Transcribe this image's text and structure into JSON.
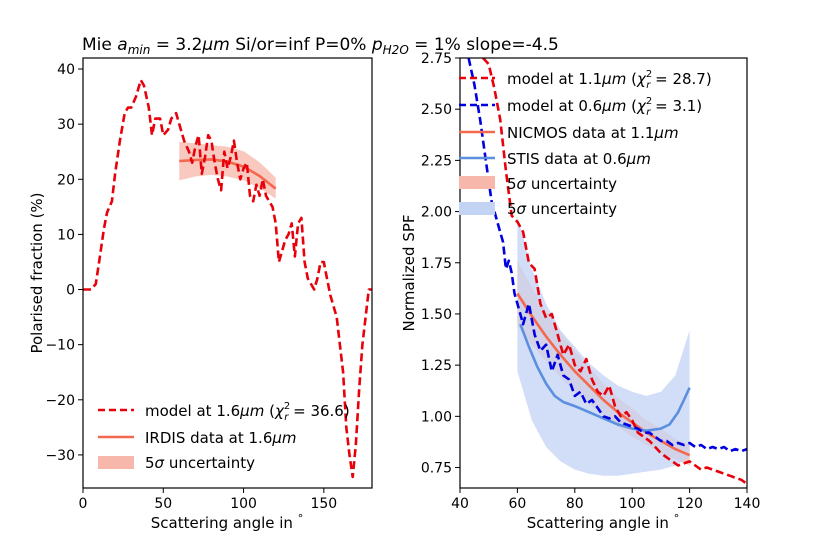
{
  "title": "Mie a_min = 3.2μm Si/or=inf P=0% p_H2O = 1% slope=-4.5",
  "title_parts": {
    "lead": "Mie ",
    "a_base": "a",
    "a_sub": "min",
    "mid": " = 3.2",
    "mu1": "μm",
    "mid2": " Si/or=inf P=0% ",
    "p_base": "p",
    "p_sub": "H2O",
    "tail": " = 1% slope=-4.5"
  },
  "colors": {
    "red": "#e8000b",
    "blue": "#0000e0",
    "salmon": "#f4684d",
    "steelblue": "#5b8fe0",
    "salmon_fill": "#f7b7aa",
    "blue_fill": "#c3d3f4"
  },
  "chart_data": [
    {
      "type": "line",
      "panel": "left",
      "xlabel": "Scattering angle in °",
      "ylabel": "Polarised fraction (%)",
      "xlim": [
        0,
        180
      ],
      "ylim": [
        -36,
        42
      ],
      "xticks": [
        0,
        50,
        100,
        150
      ],
      "yticks": [
        40,
        30,
        20,
        10,
        0,
        -10,
        -20,
        -30
      ],
      "xtick_labels": [
        "0",
        "50",
        "100",
        "150"
      ],
      "ytick_labels": [
        "40",
        "30",
        "20",
        "10",
        "0",
        "−10",
        "−20",
        "−30"
      ],
      "series": [
        {
          "name": "model at 1.6μm (χ²r = 36.6)",
          "style": "dashed",
          "color": "#e8000b",
          "x": [
            0,
            5,
            8,
            10,
            13,
            15,
            18,
            20,
            23,
            26,
            28,
            30,
            33,
            36,
            38,
            41,
            43,
            45,
            48,
            50,
            53,
            55,
            58,
            60,
            63,
            66,
            68,
            70,
            72,
            74,
            76,
            78,
            80,
            82,
            84,
            86,
            88,
            90,
            92,
            94,
            96,
            98,
            100,
            102,
            104,
            106,
            108,
            110,
            112,
            114,
            116,
            118,
            120,
            122,
            124,
            126,
            128,
            130,
            132,
            134,
            136,
            138,
            140,
            142,
            144,
            146,
            148,
            150,
            152,
            154,
            156,
            158,
            160,
            162,
            164,
            166,
            168,
            170,
            172,
            174,
            176,
            178,
            180
          ],
          "y": [
            0,
            0,
            1,
            5,
            11,
            14,
            16,
            21,
            27,
            32,
            33,
            33,
            35,
            38,
            37,
            33,
            28,
            31,
            31,
            28,
            29,
            31,
            32,
            30,
            27,
            25,
            23,
            26,
            28,
            21,
            24,
            28,
            27,
            23,
            20,
            18,
            25,
            22,
            24,
            27,
            23,
            20,
            22,
            23,
            17,
            16,
            19,
            17,
            20,
            17,
            16,
            15,
            12,
            5,
            7,
            9,
            10,
            12,
            6,
            12,
            13,
            5,
            2,
            1,
            0,
            2,
            5,
            5,
            2,
            -1,
            -3,
            -5,
            -10,
            -15,
            -25,
            -30,
            -34,
            -28,
            -18,
            -10,
            -5,
            0,
            0
          ]
        },
        {
          "name": "IRDIS data at 1.6μm",
          "style": "solid",
          "color": "#f4684d",
          "x": [
            60,
            70,
            80,
            90,
            100,
            110,
            120
          ],
          "y": [
            23.3,
            23.5,
            23.6,
            23.2,
            22.3,
            20.6,
            18.3
          ]
        }
      ],
      "bands": [
        {
          "name": "5σ uncertainty",
          "color": "#f7b7aa",
          "x": [
            60,
            70,
            80,
            90,
            100,
            110,
            120
          ],
          "lower": [
            19.8,
            20.5,
            20.8,
            20.5,
            19.8,
            18.4,
            16.5
          ],
          "upper": [
            26.8,
            26.5,
            26.2,
            25.9,
            25.1,
            23.1,
            20.3
          ]
        }
      ],
      "legend": {
        "location": "lower-left",
        "entries": [
          "model at 1.6μm (χ²r = 36.6)",
          "IRDIS data at 1.6μm",
          "5σ uncertainty"
        ]
      }
    },
    {
      "type": "line",
      "panel": "right",
      "xlabel": "Scattering angle in °",
      "ylabel": "Normalized SPF",
      "xlim": [
        40,
        140
      ],
      "ylim": [
        0.65,
        2.75
      ],
      "xticks": [
        40,
        60,
        80,
        100,
        120,
        140
      ],
      "yticks": [
        0.75,
        1.0,
        1.25,
        1.5,
        1.75,
        2.0,
        2.25,
        2.5,
        2.75
      ],
      "xtick_labels": [
        "40",
        "60",
        "80",
        "100",
        "120",
        "140"
      ],
      "ytick_labels": [
        "0.75",
        "1.00",
        "1.25",
        "1.50",
        "1.75",
        "2.00",
        "2.25",
        "2.50",
        "2.75"
      ],
      "series": [
        {
          "name": "model at 1.1μm (χ²r = 28.7)",
          "style": "dashed",
          "color": "#e8000b",
          "x": [
            48,
            50,
            52,
            54,
            56,
            58,
            60,
            62,
            64,
            66,
            68,
            70,
            72,
            74,
            76,
            78,
            80,
            82,
            84,
            86,
            88,
            90,
            92,
            94,
            96,
            98,
            100,
            102,
            104,
            106,
            108,
            110,
            112,
            114,
            116,
            118,
            120,
            122,
            124,
            126,
            128,
            130,
            132,
            134,
            136,
            138,
            140
          ],
          "y": [
            2.75,
            2.72,
            2.6,
            2.45,
            2.2,
            1.98,
            1.95,
            1.9,
            1.75,
            1.72,
            1.55,
            1.48,
            1.5,
            1.4,
            1.3,
            1.35,
            1.25,
            1.22,
            1.28,
            1.18,
            1.12,
            1.1,
            1.15,
            1.05,
            1.0,
            1.02,
            0.98,
            0.92,
            0.9,
            0.88,
            0.85,
            0.82,
            0.8,
            0.78,
            0.76,
            0.77,
            0.78,
            0.76,
            0.74,
            0.75,
            0.74,
            0.73,
            0.72,
            0.71,
            0.7,
            0.69,
            0.67
          ]
        },
        {
          "name": "model at 0.6μm (χ²r = 3.1)",
          "style": "dashed",
          "color": "#0000e0",
          "x": [
            43,
            45,
            47,
            49,
            51,
            53,
            55,
            56,
            57,
            58,
            59,
            60,
            61,
            62,
            64,
            66,
            68,
            70,
            72,
            74,
            76,
            78,
            80,
            82,
            84,
            86,
            88,
            90,
            92,
            94,
            96,
            98,
            100,
            102,
            104,
            106,
            108,
            110,
            112,
            114,
            116,
            118,
            120,
            122,
            124,
            126,
            128,
            130,
            132,
            134,
            136,
            138,
            140
          ],
          "y": [
            2.75,
            2.62,
            2.45,
            2.25,
            2.05,
            1.95,
            1.85,
            1.72,
            1.76,
            1.7,
            1.6,
            1.55,
            1.5,
            1.45,
            1.55,
            1.4,
            1.32,
            1.35,
            1.22,
            1.3,
            1.2,
            1.18,
            1.1,
            1.12,
            1.06,
            1.08,
            1.04,
            1.0,
            0.99,
            1.0,
            0.97,
            0.96,
            0.95,
            0.94,
            0.92,
            0.92,
            0.9,
            0.88,
            0.88,
            0.86,
            0.87,
            0.86,
            0.87,
            0.85,
            0.86,
            0.84,
            0.85,
            0.84,
            0.85,
            0.83,
            0.84,
            0.83,
            0.84
          ]
        },
        {
          "name": "NICMOS data at 1.1μm",
          "style": "solid",
          "color": "#f4684d",
          "x": [
            60,
            65,
            70,
            75,
            80,
            85,
            90,
            95,
            100,
            105,
            110,
            115,
            120
          ],
          "y": [
            1.6,
            1.49,
            1.39,
            1.3,
            1.22,
            1.15,
            1.08,
            1.02,
            0.97,
            0.92,
            0.88,
            0.84,
            0.81
          ]
        },
        {
          "name": "STIS data at 0.6μm",
          "style": "solid",
          "color": "#5b8fe0",
          "x": [
            61,
            64,
            67,
            70,
            73,
            76,
            80,
            85,
            90,
            95,
            100,
            105,
            110,
            113,
            116,
            118,
            120
          ],
          "y": [
            1.45,
            1.34,
            1.24,
            1.16,
            1.1,
            1.07,
            1.05,
            1.02,
            0.99,
            0.96,
            0.94,
            0.93,
            0.94,
            0.96,
            1.02,
            1.08,
            1.14
          ]
        }
      ],
      "bands": [
        {
          "name": "5σ uncertainty",
          "color": "#f7b7aa",
          "x": [
            60,
            65,
            70,
            75,
            80,
            85,
            90,
            95,
            100,
            105,
            110,
            115,
            120
          ],
          "lower": [
            1.44,
            1.35,
            1.27,
            1.19,
            1.12,
            1.06,
            1.0,
            0.95,
            0.9,
            0.86,
            0.82,
            0.79,
            0.76
          ],
          "upper": [
            1.76,
            1.63,
            1.51,
            1.41,
            1.32,
            1.24,
            1.16,
            1.09,
            1.04,
            0.98,
            0.94,
            0.89,
            0.86
          ]
        },
        {
          "name": "5σ uncertainty",
          "color": "#c3d3f4",
          "x": [
            60,
            65,
            70,
            75,
            80,
            85,
            90,
            95,
            100,
            105,
            110,
            115,
            120
          ],
          "lower": [
            1.22,
            0.98,
            0.85,
            0.78,
            0.74,
            0.72,
            0.71,
            0.71,
            0.72,
            0.73,
            0.74,
            0.76,
            0.8
          ],
          "upper": [
            1.98,
            1.72,
            1.55,
            1.42,
            1.34,
            1.26,
            1.2,
            1.15,
            1.12,
            1.1,
            1.12,
            1.2,
            1.42
          ]
        }
      ],
      "legend": {
        "location": "top-right",
        "entries": [
          "model at 1.1μm (χ²r = 28.7)",
          "model at 0.6μm (χ²r = 3.1)",
          "NICMOS data at 1.1μm",
          "STIS data at 0.6μm",
          "5σ uncertainty",
          "5σ uncertainty"
        ]
      }
    }
  ],
  "legend_text": {
    "left": [
      {
        "pre": "model at 1.6",
        "mu": "μm",
        "mid": " (",
        "chi": "χ",
        "sup": "2",
        "sub": "r",
        "post": " = 36.6)"
      },
      {
        "pre": "IRDIS data at 1.6",
        "mu": "μm"
      },
      {
        "pre": "5",
        "sigma": "σ",
        "post": " uncertainty"
      }
    ],
    "right": [
      {
        "pre": "model at 1.1",
        "mu": "μm",
        "mid": " (",
        "chi": "χ",
        "sup": "2",
        "sub": "r",
        "post": " = 28.7)"
      },
      {
        "pre": "model at 0.6",
        "mu": "μm",
        "mid": " (",
        "chi": "χ",
        "sup": "2",
        "sub": "r",
        "post": " = 3.1)"
      },
      {
        "pre": "NICMOS data at 1.1",
        "mu": "μm"
      },
      {
        "pre": "STIS data at 0.6",
        "mu": "μm"
      },
      {
        "pre": "5",
        "sigma": "σ",
        "post": " uncertainty"
      },
      {
        "pre": "5",
        "sigma": "σ",
        "post": " uncertainty"
      }
    ]
  },
  "xlabel_parts": {
    "text": "Scattering angle in ",
    "degree": "°"
  }
}
